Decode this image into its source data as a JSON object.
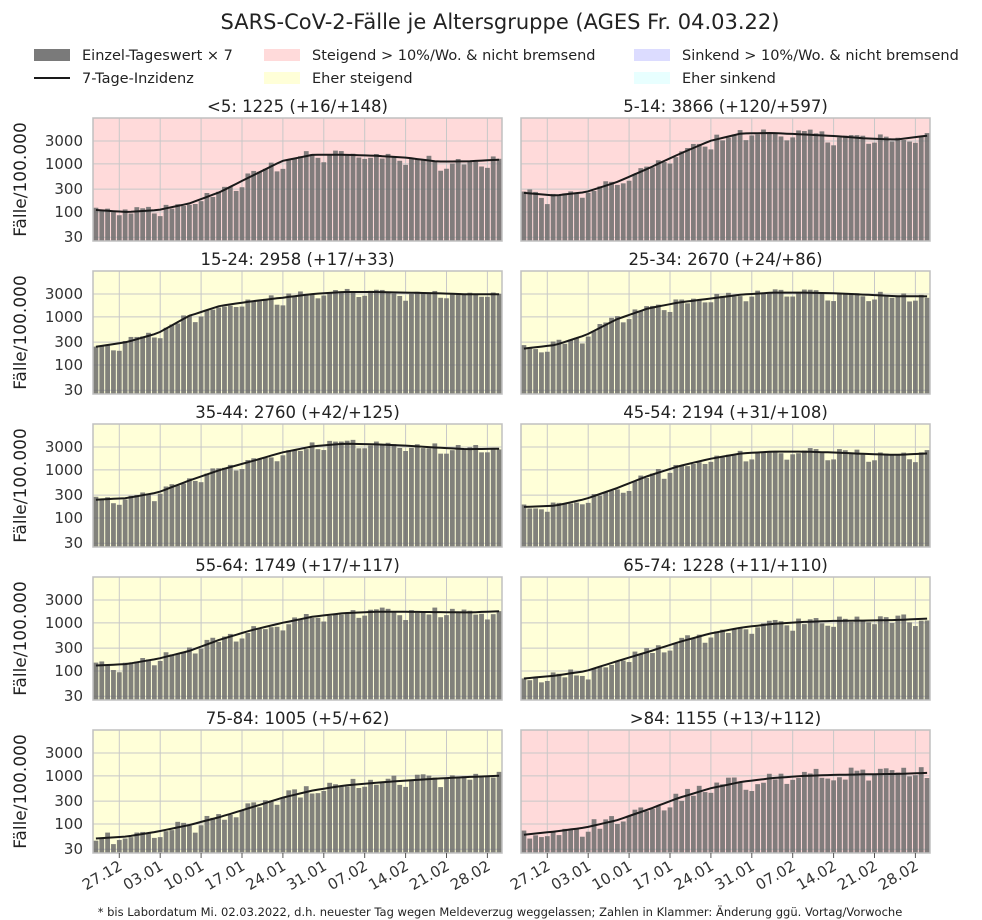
{
  "figure": {
    "title": "SARS-CoV-2-Fälle je Altersgruppe (AGES Fr. 04.03.22)",
    "footnote": "* bis Labordatum Mi. 02.03.2022, d.h. neuester Tag wegen Meldeverzug weggelassen; Zahlen in Klammer: Änderung ggü. Vortag/Vorwoche",
    "ylabel": "Fälle/100.000",
    "colors": {
      "bar": "#6b6b6b",
      "line": "#1a1a1a",
      "steigend": "#ffdada",
      "eher_steigend": "#ffffd8",
      "sinkend": "#dcdcff",
      "eher_sinkend": "#e8ffff",
      "grid": "#c8c8c8",
      "frame": "#c0c0c0"
    }
  },
  "legend": [
    {
      "label": "Einzel-Tageswert × 7",
      "kind": "patch",
      "color": "#7a7a7a"
    },
    {
      "label": "7-Tage-Inzidenz",
      "kind": "line",
      "color": "#1a1a1a"
    },
    {
      "label": "Steigend > 10%/Wo. & nicht bremsend",
      "kind": "patch",
      "color": "#ffdada"
    },
    {
      "label": "Eher steigend",
      "kind": "patch",
      "color": "#ffffd8"
    },
    {
      "label": "Sinkend > 10%/Wo. & nicht bremsend",
      "kind": "patch",
      "color": "#dcdcff"
    },
    {
      "label": "Eher sinkend",
      "kind": "patch",
      "color": "#e8ffff"
    }
  ],
  "chart_data": {
    "type": "bar",
    "y_scale": "log",
    "ylim": [
      25,
      9000
    ],
    "yticks": [
      30,
      100,
      300,
      1000,
      3000
    ],
    "x_start_date": "2021-12-23",
    "x_end_date": "2022-03-02",
    "xtick_labels": [
      "27.12",
      "03.01",
      "10.01",
      "17.01",
      "24.01",
      "31.01",
      "07.02",
      "14.02",
      "21.02",
      "28.02"
    ],
    "panels": [
      {
        "title": "<5: 1225 (+16/+148)",
        "trend": "steigend",
        "smooth": [
          110,
          100,
          110,
          150,
          260,
          550,
          1150,
          1550,
          1550,
          1480,
          1350,
          1120,
          1130,
          1225
        ],
        "noise": 0.2
      },
      {
        "title": "5-14: 3866 (+120/+597)",
        "trend": "steigend",
        "smooth": [
          250,
          220,
          260,
          420,
          800,
          1600,
          3000,
          4300,
          4400,
          4100,
          3800,
          3400,
          3200,
          3866
        ],
        "noise": 0.2
      },
      {
        "title": "15-24: 2958 (+17/+33)",
        "trend": "eher_steigend",
        "smooth": [
          240,
          300,
          460,
          1050,
          1700,
          2100,
          2500,
          3000,
          3300,
          3300,
          3200,
          3100,
          2950,
          2958
        ],
        "noise": 0.15
      },
      {
        "title": "25-34: 2670 (+24/+86)",
        "trend": "eher_steigend",
        "smooth": [
          220,
          260,
          420,
          900,
          1500,
          2000,
          2400,
          2900,
          3200,
          3200,
          3100,
          2900,
          2700,
          2670
        ],
        "noise": 0.15
      },
      {
        "title": "35-44: 2760 (+42/+125)",
        "trend": "eher_steigend",
        "smooth": [
          240,
          260,
          340,
          600,
          1000,
          1500,
          2300,
          3100,
          3500,
          3400,
          3200,
          2900,
          2700,
          2760
        ],
        "noise": 0.15
      },
      {
        "title": "45-54: 2194 (+31/+108)",
        "trend": "eher_steigend",
        "smooth": [
          170,
          180,
          250,
          420,
          750,
          1200,
          1700,
          2200,
          2400,
          2400,
          2300,
          2150,
          2050,
          2194
        ],
        "noise": 0.15
      },
      {
        "title": "55-64: 1749 (+17/+117)",
        "trend": "eher_steigend",
        "smooth": [
          130,
          140,
          180,
          260,
          450,
          700,
          1000,
          1350,
          1600,
          1700,
          1700,
          1680,
          1650,
          1749
        ],
        "noise": 0.18
      },
      {
        "title": "65-74: 1228 (+11/+110)",
        "trend": "eher_steigend",
        "smooth": [
          70,
          80,
          100,
          160,
          250,
          400,
          600,
          800,
          950,
          1050,
          1100,
          1120,
          1150,
          1228
        ],
        "noise": 0.2
      },
      {
        "title": "75-84: 1005 (+5/+62)",
        "trend": "eher_steigend",
        "smooth": [
          50,
          55,
          70,
          95,
          140,
          220,
          350,
          500,
          630,
          720,
          800,
          880,
          950,
          1005
        ],
        "noise": 0.25
      },
      {
        "title": ">84: 1155 (+13/+112)",
        "trend": "steigend",
        "smooth": [
          60,
          70,
          85,
          120,
          200,
          350,
          550,
          750,
          900,
          1000,
          1050,
          1080,
          1100,
          1155
        ],
        "noise": 0.3
      }
    ]
  }
}
